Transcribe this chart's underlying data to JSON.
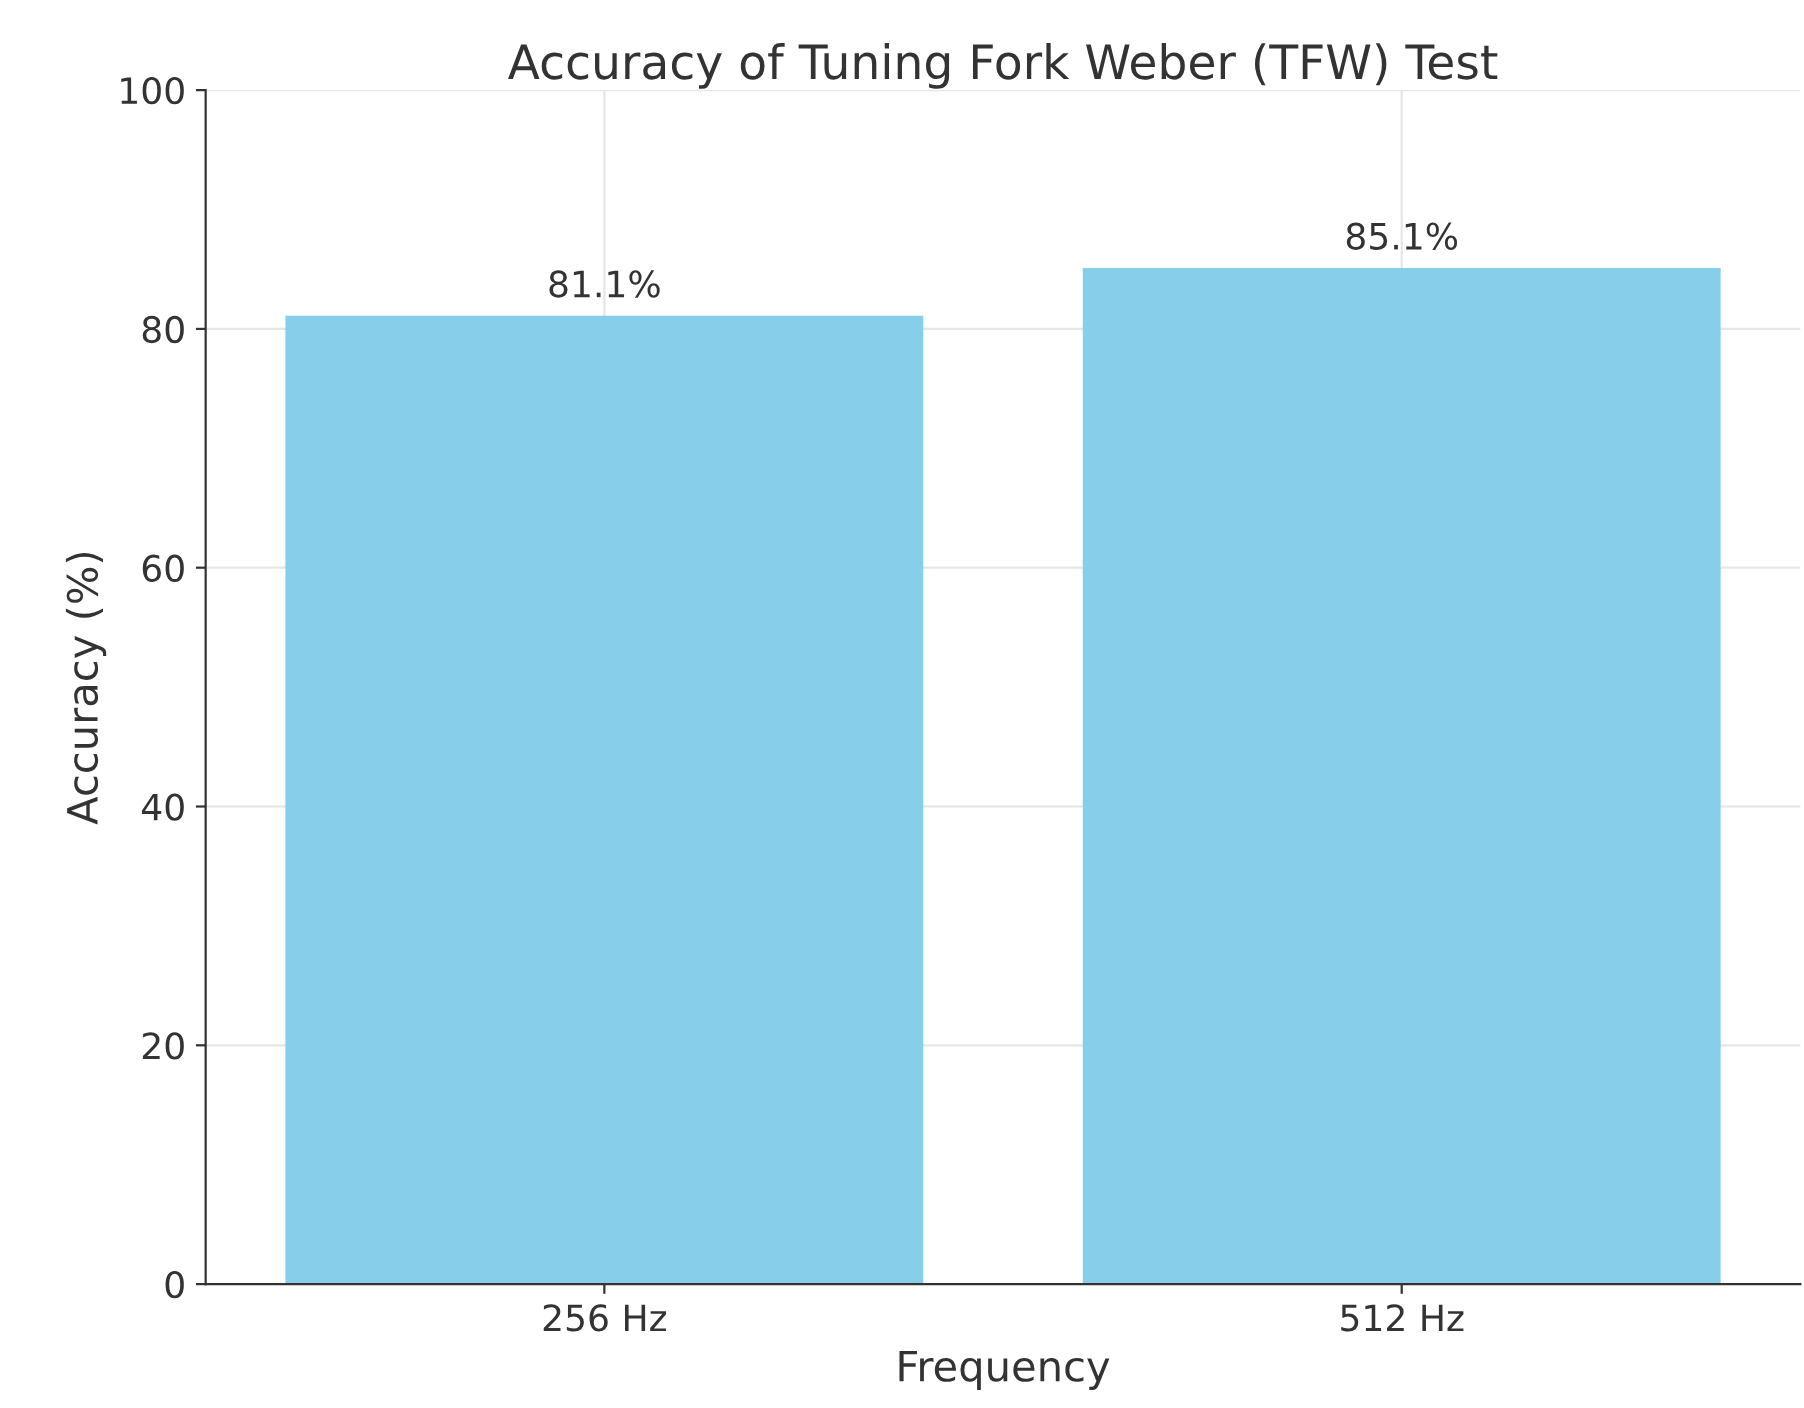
{
  "chart_data": {
    "type": "bar",
    "title": "Accuracy of Tuning Fork Weber (TFW) Test",
    "xlabel": "Frequency",
    "ylabel": "Accuracy (%)",
    "categories": [
      "256 Hz",
      "512 Hz"
    ],
    "values": [
      81.1,
      85.1
    ],
    "value_labels": [
      "81.1%",
      "85.1%"
    ],
    "color": "#87ceeb",
    "ylim": [
      0,
      100
    ],
    "yticks": [
      0,
      20,
      40,
      60,
      80,
      100
    ],
    "grid": true
  }
}
